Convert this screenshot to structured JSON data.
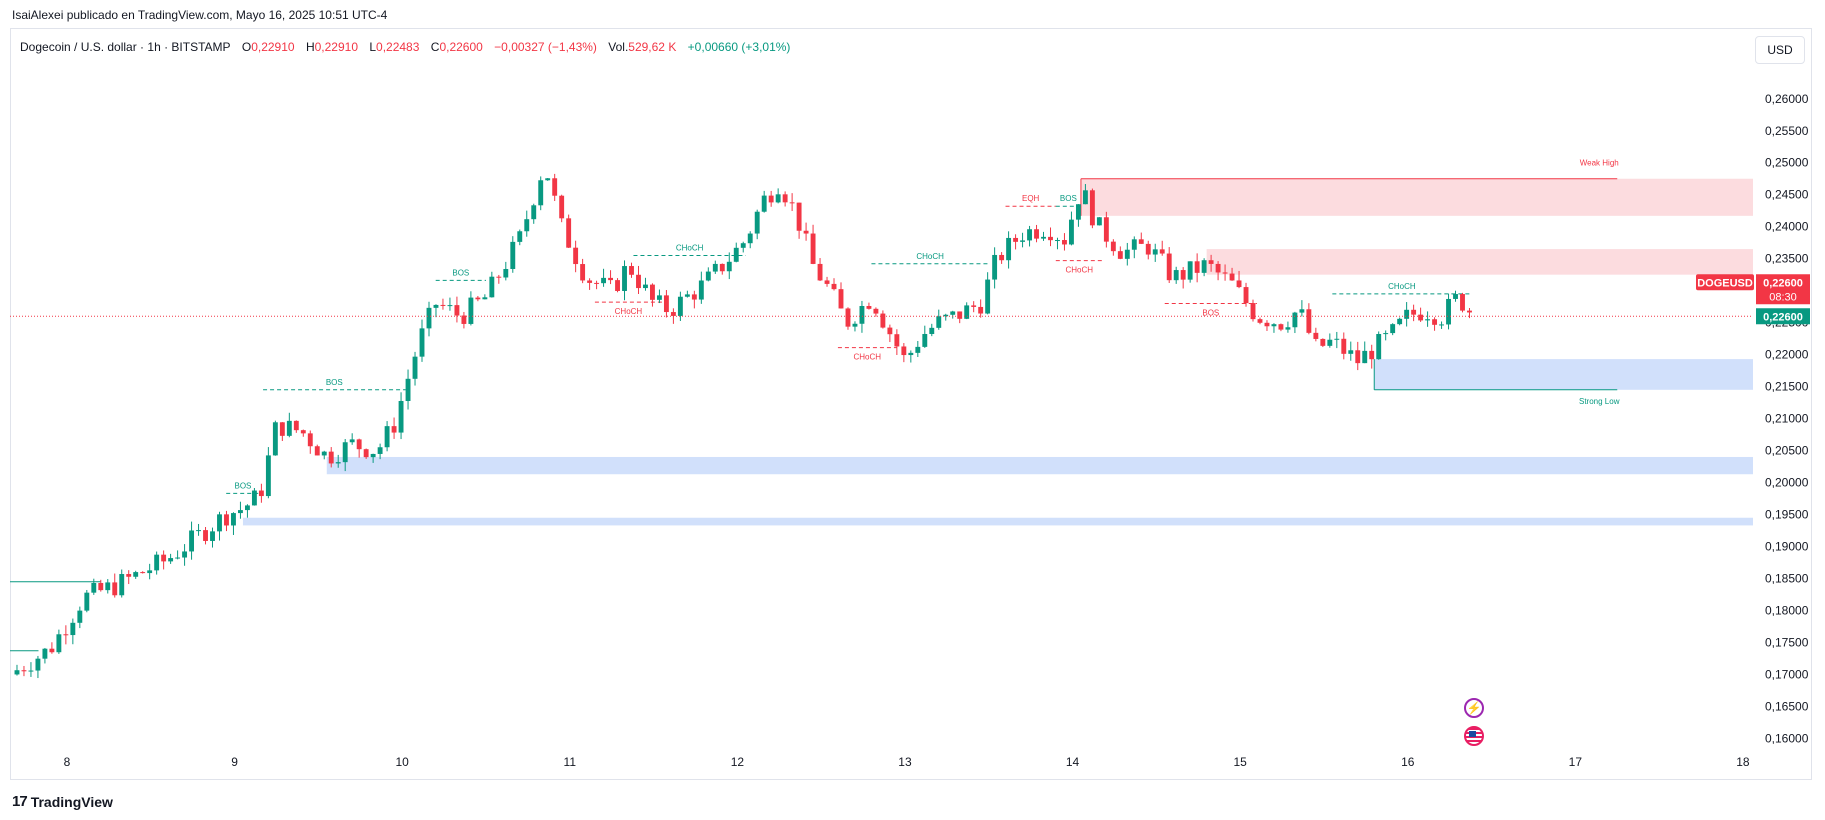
{
  "header": {
    "publisher_line": "IsaiAlexei publicado en TradingView.com, Mayo 16, 2025 10:51 UTC-4"
  },
  "legend": {
    "symbol_line": "Dogecoin / U.S. dollar · 1h · BITSTAMP",
    "open_label": "O",
    "open": "0,22910",
    "high_label": "H",
    "high": "0,22910",
    "low_label": "L",
    "low": "0,22483",
    "close_label": "C",
    "close": "0,22600",
    "change": "−0,00327 (−1,43%)",
    "vol_label": "Vol.",
    "vol": "529,62 K",
    "extra": "+0,00660 (+3,01%)"
  },
  "currency_button": "USD",
  "footer": {
    "brand": "TradingView",
    "brand_mark": "17"
  },
  "icons": {
    "flash": "flash-icon",
    "flag": "us-flag-icon"
  },
  "colors": {
    "up": "#089981",
    "down": "#f23645",
    "demand_zone": "#d1e0fb",
    "supply_zone": "#fcdcdf",
    "text": "#131722"
  },
  "chart_data": {
    "type": "candlestick",
    "y_axis": {
      "ticks": [
        "0,26000",
        "0,25500",
        "0,25000",
        "0,24500",
        "0,24000",
        "0,23500",
        "0,23000",
        "0,22500",
        "0,22000",
        "0,21500",
        "0,21000",
        "0,20500",
        "0,20000",
        "0,19500",
        "0,19000",
        "0,18500",
        "0,18000",
        "0,17500",
        "0,17000",
        "0,16500",
        "0,16000"
      ],
      "range": [
        0.1585,
        0.2645
      ],
      "side": "right"
    },
    "x_axis": {
      "ticks": [
        "8",
        "9",
        "10",
        "11",
        "12",
        "13",
        "14",
        "15",
        "16",
        "17",
        "18"
      ],
      "tick_values": [
        8,
        9,
        10,
        11,
        12,
        13,
        14,
        15,
        16,
        17,
        18
      ],
      "range": [
        7.66,
        18.06
      ],
      "unit": "day of May 2025"
    },
    "last_price": {
      "symbol": "DOGEUSD",
      "price": "0,22600",
      "countdown": "08:30",
      "price2": "0,22600",
      "value": 0.226
    },
    "key_points": [
      [
        7.66,
        0.17
      ],
      [
        7.9,
        0.174
      ],
      [
        8.1,
        0.182
      ],
      [
        8.3,
        0.184
      ],
      [
        8.45,
        0.186
      ],
      [
        8.6,
        0.188
      ],
      [
        8.8,
        0.192
      ],
      [
        8.95,
        0.195
      ],
      [
        9.05,
        0.196
      ],
      [
        9.15,
        0.198
      ],
      [
        9.25,
        0.209
      ],
      [
        9.4,
        0.208
      ],
      [
        9.55,
        0.204
      ],
      [
        9.7,
        0.206
      ],
      [
        9.85,
        0.205
      ],
      [
        9.95,
        0.209
      ],
      [
        10.1,
        0.222
      ],
      [
        10.2,
        0.228
      ],
      [
        10.35,
        0.226
      ],
      [
        10.5,
        0.229
      ],
      [
        10.7,
        0.238
      ],
      [
        10.85,
        0.25
      ],
      [
        10.95,
        0.24
      ],
      [
        11.1,
        0.232
      ],
      [
        11.25,
        0.23
      ],
      [
        11.35,
        0.234
      ],
      [
        11.5,
        0.228
      ],
      [
        11.6,
        0.227
      ],
      [
        11.8,
        0.231
      ],
      [
        11.95,
        0.235
      ],
      [
        12.05,
        0.238
      ],
      [
        12.15,
        0.244
      ],
      [
        12.25,
        0.247
      ],
      [
        12.35,
        0.242
      ],
      [
        12.45,
        0.234
      ],
      [
        12.55,
        0.23
      ],
      [
        12.65,
        0.225
      ],
      [
        12.8,
        0.229
      ],
      [
        12.9,
        0.224
      ],
      [
        13.0,
        0.219
      ],
      [
        13.1,
        0.223
      ],
      [
        13.2,
        0.225
      ],
      [
        13.3,
        0.226
      ],
      [
        13.45,
        0.228
      ],
      [
        13.55,
        0.235
      ],
      [
        13.7,
        0.239
      ],
      [
        13.85,
        0.24
      ],
      [
        13.95,
        0.238
      ],
      [
        14.05,
        0.246
      ],
      [
        14.15,
        0.24
      ],
      [
        14.3,
        0.236
      ],
      [
        14.45,
        0.237
      ],
      [
        14.6,
        0.232
      ],
      [
        14.7,
        0.233
      ],
      [
        14.8,
        0.234
      ],
      [
        14.95,
        0.231
      ],
      [
        15.1,
        0.226
      ],
      [
        15.25,
        0.225
      ],
      [
        15.35,
        0.227
      ],
      [
        15.45,
        0.221
      ],
      [
        15.55,
        0.222
      ],
      [
        15.7,
        0.219
      ],
      [
        15.8,
        0.221
      ],
      [
        15.9,
        0.223
      ],
      [
        16.0,
        0.226
      ],
      [
        16.1,
        0.227
      ],
      [
        16.2,
        0.226
      ],
      [
        16.3,
        0.229
      ],
      [
        16.4,
        0.226
      ]
    ],
    "zones": [
      {
        "kind": "supply",
        "x1": 14.05,
        "x2": 18.06,
        "y1": 0.2417,
        "y2": 0.2475
      },
      {
        "kind": "supply",
        "x1": 14.8,
        "x2": 18.06,
        "y1": 0.2325,
        "y2": 0.2365
      },
      {
        "kind": "demand",
        "x1": 15.8,
        "x2": 18.06,
        "y1": 0.2145,
        "y2": 0.2193
      },
      {
        "kind": "demand",
        "x1": 9.55,
        "x2": 18.06,
        "y1": 0.2013,
        "y2": 0.204
      },
      {
        "kind": "demand",
        "x1": 9.05,
        "x2": 18.06,
        "y1": 0.1933,
        "y2": 0.1945
      }
    ],
    "levels": [
      {
        "label": "Weak High",
        "color": "#f23645",
        "x1": 14.05,
        "x2": 17.25,
        "y": 0.2475
      },
      {
        "label": "Strong Low",
        "color": "#089981",
        "x1": 15.8,
        "x2": 17.25,
        "y": 0.2145
      },
      {
        "label": "",
        "color": "#089981",
        "x1": 7.66,
        "x2": 8.2,
        "y": 0.1845
      },
      {
        "label": "",
        "color": "#089981",
        "x1": 7.66,
        "x2": 7.83,
        "y": 0.1737
      }
    ],
    "structure": [
      {
        "label": "BOS",
        "color": "#089981",
        "x1": 8.95,
        "x2": 9.15,
        "y": 0.1983
      },
      {
        "label": "BOS",
        "color": "#089981",
        "x1": 9.17,
        "x2": 10.02,
        "y": 0.2145
      },
      {
        "label": "BOS",
        "color": "#089981",
        "x1": 10.2,
        "x2": 10.5,
        "y": 0.2316
      },
      {
        "label": "CHoCH",
        "color": "#f23645",
        "x1": 11.15,
        "x2": 11.55,
        "y": 0.2282
      },
      {
        "label": "CHoCH",
        "color": "#089981",
        "x1": 11.38,
        "x2": 12.05,
        "y": 0.2355
      },
      {
        "label": "CHoCH",
        "color": "#f23645",
        "x1": 12.6,
        "x2": 12.95,
        "y": 0.2211
      },
      {
        "label": "CHoCH",
        "color": "#089981",
        "x1": 12.8,
        "x2": 13.5,
        "y": 0.2342
      },
      {
        "label": "EQH",
        "color": "#f23645",
        "x1": 13.6,
        "x2": 13.9,
        "y": 0.2432
      },
      {
        "label": "BOS",
        "color": "#089981",
        "x1": 13.9,
        "x2": 14.05,
        "y": 0.2432
      },
      {
        "label": "CHoCH",
        "color": "#f23645",
        "x1": 13.9,
        "x2": 14.18,
        "y": 0.2347
      },
      {
        "label": "BOS",
        "color": "#f23645",
        "x1": 14.55,
        "x2": 15.1,
        "y": 0.228
      },
      {
        "label": "CHoCH",
        "color": "#089981",
        "x1": 15.55,
        "x2": 16.38,
        "y": 0.2295
      }
    ]
  }
}
